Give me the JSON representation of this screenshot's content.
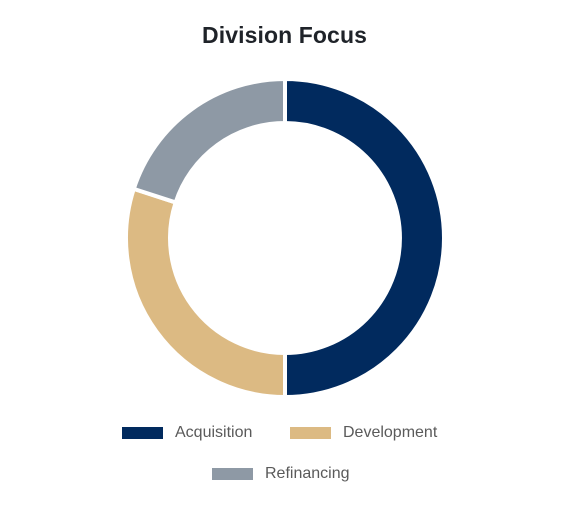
{
  "chart_data": {
    "type": "pie",
    "variant": "donut",
    "title": "Division Focus",
    "categories": [
      "Acquisition",
      "Development",
      "Refinancing"
    ],
    "values": [
      50,
      30,
      20
    ],
    "unit": "%",
    "colors": [
      "#012a5e",
      "#dcba83",
      "#8e99a5"
    ],
    "legend_position": "bottom",
    "slice_border_color": "#ffffff"
  }
}
